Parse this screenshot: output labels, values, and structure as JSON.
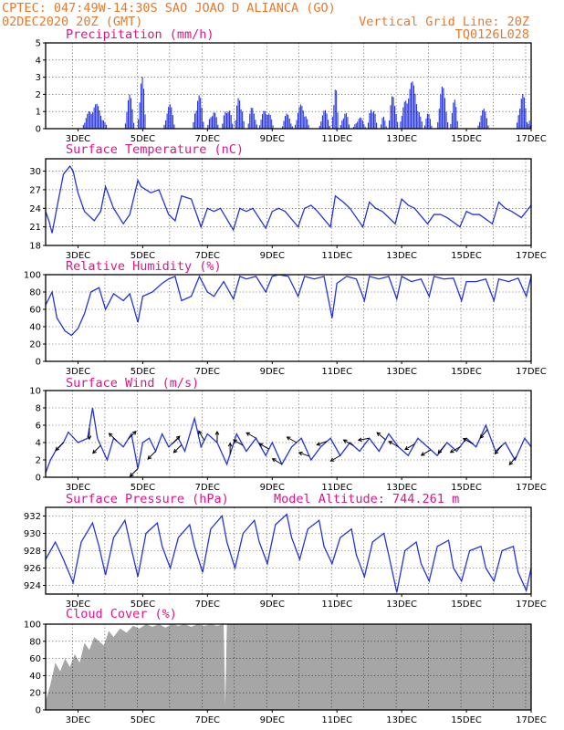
{
  "header": {
    "line1_left": "CPTEC:   047:49W-14:30S  SAO JOAO D ALIANCA (GO)",
    "line2_left": "02DEC2020 20Z (GMT)",
    "line2_right": "Vertical Grid Line: 20Z",
    "line3_right": "TQ0126L028"
  },
  "colors": {
    "header": "#e8792b",
    "panel_title": "#e0148c",
    "series": "#2434e0",
    "cloud": "#a6a6a6"
  },
  "chart_data": [
    {
      "id": "precip",
      "type": "bar",
      "title": "Precipitation (mm/h)",
      "ylim": [
        0,
        5
      ],
      "yticks": [
        0,
        1,
        2,
        3,
        4,
        5
      ],
      "x_domain_days": [
        2.0,
        17.0
      ],
      "xticks": [
        "3DEC",
        "5DEC",
        "7DEC",
        "9DEC",
        "11DEC",
        "13DEC",
        "15DEC",
        "17DEC"
      ],
      "events": [
        [
          3.15,
          3.9,
          1.5
        ],
        [
          4.45,
          4.75,
          2.0
        ],
        [
          4.85,
          5.1,
          3.3
        ],
        [
          5.65,
          6.0,
          1.5
        ],
        [
          6.55,
          6.9,
          2.2
        ],
        [
          7.0,
          7.35,
          1.2
        ],
        [
          7.45,
          7.8,
          1.5
        ],
        [
          7.85,
          8.15,
          2.2
        ],
        [
          8.25,
          8.55,
          1.4
        ],
        [
          8.6,
          9.05,
          1.3
        ],
        [
          9.3,
          9.65,
          0.9
        ],
        [
          9.7,
          10.15,
          1.5
        ],
        [
          10.45,
          10.8,
          1.1
        ],
        [
          10.85,
          11.05,
          3.1
        ],
        [
          11.1,
          11.4,
          1.1
        ],
        [
          11.5,
          11.9,
          0.7
        ],
        [
          11.95,
          12.25,
          1.6
        ],
        [
          12.35,
          12.55,
          0.8
        ],
        [
          12.6,
          12.9,
          2.2
        ],
        [
          12.95,
          13.65,
          2.8
        ],
        [
          13.7,
          13.95,
          0.9
        ],
        [
          14.1,
          14.45,
          2.5
        ],
        [
          14.5,
          14.75,
          1.8
        ],
        [
          15.35,
          15.7,
          1.2
        ],
        [
          16.55,
          16.9,
          2.2
        ],
        [
          16.9,
          17.0,
          0.6
        ]
      ]
    },
    {
      "id": "temp",
      "type": "line",
      "title": "Surface Temperature (nC)",
      "ylim": [
        18,
        32
      ],
      "yticks": [
        18,
        21,
        24,
        27,
        30
      ],
      "x_domain_days": [
        2.0,
        17.0
      ],
      "xticks": [
        "3DEC",
        "5DEC",
        "7DEC",
        "9DEC",
        "11DEC",
        "13DEC",
        "15DEC",
        "17DEC"
      ],
      "x": [
        2.0,
        2.1,
        2.2,
        2.4,
        2.55,
        2.75,
        2.85,
        3.0,
        3.2,
        3.5,
        3.7,
        3.85,
        4.1,
        4.4,
        4.6,
        4.85,
        4.95,
        5.25,
        5.5,
        5.8,
        6.0,
        6.2,
        6.5,
        6.8,
        7.0,
        7.2,
        7.4,
        7.8,
        8.0,
        8.2,
        8.4,
        8.8,
        9.0,
        9.2,
        9.4,
        9.8,
        10.0,
        10.2,
        10.4,
        10.8,
        10.95,
        11.2,
        11.4,
        11.8,
        12.0,
        12.2,
        12.4,
        12.8,
        13.0,
        13.2,
        13.4,
        13.8,
        14.0,
        14.2,
        14.4,
        14.8,
        15.0,
        15.2,
        15.4,
        15.8,
        16.0,
        16.2,
        16.4,
        16.7,
        17.0
      ],
      "y": [
        23.5,
        22.0,
        20.0,
        25.5,
        29.5,
        30.8,
        30.0,
        26.5,
        23.5,
        22.0,
        23.5,
        27.5,
        24.0,
        21.5,
        23.0,
        28.5,
        27.5,
        26.5,
        27.0,
        23.0,
        22.0,
        26.0,
        25.5,
        21.0,
        24.0,
        23.5,
        24.0,
        20.5,
        24.0,
        23.5,
        24.0,
        20.8,
        23.5,
        24.0,
        23.5,
        21.0,
        24.0,
        24.5,
        23.5,
        21.0,
        26.0,
        25.0,
        24.0,
        21.0,
        25.0,
        24.0,
        23.5,
        21.5,
        25.5,
        24.5,
        24.0,
        21.5,
        23.0,
        23.0,
        22.5,
        21.0,
        23.5,
        23.0,
        23.0,
        21.5,
        25.0,
        24.0,
        23.5,
        22.5,
        24.5
      ]
    },
    {
      "id": "rh",
      "type": "line",
      "title": "Relative Humidity (%)",
      "ylim": [
        0,
        100
      ],
      "yticks": [
        0,
        20,
        40,
        60,
        80,
        100
      ],
      "x_domain_days": [
        2.0,
        17.0
      ],
      "xticks": [
        "3DEC",
        "5DEC",
        "7DEC",
        "9DEC",
        "11DEC",
        "13DEC",
        "15DEC",
        "17DEC"
      ],
      "x": [
        2.0,
        2.2,
        2.35,
        2.6,
        2.8,
        3.0,
        3.2,
        3.4,
        3.65,
        3.85,
        4.1,
        4.4,
        4.6,
        4.85,
        5.0,
        5.3,
        5.6,
        5.8,
        6.0,
        6.2,
        6.5,
        6.75,
        7.0,
        7.2,
        7.5,
        7.8,
        8.0,
        8.2,
        8.5,
        8.8,
        9.0,
        9.2,
        9.5,
        9.8,
        10.0,
        10.3,
        10.6,
        10.85,
        11.0,
        11.3,
        11.6,
        11.85,
        12.0,
        12.3,
        12.6,
        12.85,
        13.0,
        13.3,
        13.6,
        13.85,
        14.0,
        14.3,
        14.6,
        14.85,
        15.0,
        15.3,
        15.6,
        15.85,
        16.0,
        16.3,
        16.6,
        16.85,
        17.0
      ],
      "y": [
        65,
        80,
        50,
        35,
        30,
        38,
        55,
        80,
        85,
        60,
        78,
        70,
        78,
        45,
        75,
        80,
        90,
        95,
        98,
        70,
        75,
        98,
        80,
        75,
        92,
        72,
        98,
        95,
        98,
        80,
        98,
        100,
        98,
        75,
        98,
        95,
        98,
        50,
        90,
        98,
        95,
        70,
        98,
        95,
        98,
        72,
        98,
        92,
        95,
        75,
        98,
        95,
        96,
        70,
        92,
        92,
        95,
        70,
        95,
        92,
        96,
        75,
        98
      ]
    },
    {
      "id": "wind",
      "type": "line",
      "title": "Surface Wind (m/s)",
      "ylim": [
        0,
        10
      ],
      "yticks": [
        0,
        2,
        4,
        6,
        8,
        10
      ],
      "x_domain_days": [
        2.0,
        17.0
      ],
      "xticks": [
        "3DEC",
        "5DEC",
        "7DEC",
        "9DEC",
        "11DEC",
        "13DEC",
        "15DEC",
        "17DEC"
      ],
      "x": [
        2.0,
        2.15,
        2.3,
        2.55,
        2.7,
        3.0,
        3.3,
        3.45,
        3.6,
        3.9,
        4.1,
        4.4,
        4.65,
        4.85,
        5.0,
        5.2,
        5.4,
        5.6,
        5.8,
        6.1,
        6.3,
        6.6,
        6.8,
        7.0,
        7.3,
        7.6,
        7.9,
        8.2,
        8.5,
        8.8,
        9.0,
        9.3,
        9.6,
        9.9,
        10.2,
        10.5,
        10.8,
        11.1,
        11.4,
        11.7,
        12.0,
        12.3,
        12.6,
        12.9,
        13.2,
        13.5,
        13.8,
        14.1,
        14.4,
        14.7,
        15.0,
        15.3,
        15.6,
        15.9,
        16.2,
        16.5,
        16.8,
        17.0
      ],
      "y": [
        0.5,
        2.0,
        3.0,
        4.0,
        5.2,
        4.0,
        4.5,
        8.0,
        4.5,
        2.0,
        4.5,
        3.5,
        5.0,
        1.0,
        4.0,
        4.5,
        3.0,
        5.0,
        3.5,
        4.5,
        3.0,
        6.8,
        3.5,
        5.0,
        4.0,
        1.5,
        5.0,
        3.0,
        4.5,
        2.5,
        4.0,
        1.5,
        3.5,
        4.5,
        2.0,
        3.5,
        4.5,
        2.5,
        4.0,
        3.0,
        4.5,
        3.0,
        5.0,
        3.5,
        2.5,
        4.5,
        3.5,
        2.5,
        4.0,
        3.0,
        4.5,
        3.5,
        6.0,
        3.0,
        4.0,
        2.0,
        4.5,
        3.5
      ],
      "vectors": [
        [
          2.55,
          225
        ],
        [
          3.35,
          180
        ],
        [
          3.7,
          225
        ],
        [
          4.2,
          315
        ],
        [
          4.55,
          45
        ],
        [
          4.85,
          225
        ],
        [
          5.4,
          225
        ],
        [
          5.9,
          45
        ],
        [
          6.2,
          225
        ],
        [
          6.9,
          330
        ],
        [
          7.3,
          0
        ],
        [
          7.7,
          0
        ],
        [
          8.1,
          300
        ],
        [
          8.5,
          300
        ],
        [
          8.9,
          300
        ],
        [
          9.3,
          300
        ],
        [
          9.75,
          300
        ],
        [
          10.15,
          290
        ],
        [
          10.7,
          250
        ],
        [
          11.1,
          240
        ],
        [
          11.5,
          300
        ],
        [
          12.0,
          260
        ],
        [
          12.5,
          310
        ],
        [
          12.9,
          300
        ],
        [
          13.4,
          240
        ],
        [
          13.9,
          240
        ],
        [
          14.35,
          220
        ],
        [
          14.8,
          240
        ],
        [
          15.2,
          300
        ],
        [
          15.65,
          220
        ],
        [
          16.1,
          220
        ],
        [
          16.55,
          220
        ]
      ]
    },
    {
      "id": "pres",
      "type": "line",
      "title": "Surface Pressure (hPa)",
      "annotation": "Model Altitude: 744.261 m",
      "ylim": [
        923,
        933
      ],
      "yticks": [
        924,
        926,
        928,
        930,
        932
      ],
      "x_domain_days": [
        2.0,
        17.0
      ],
      "xticks": [
        "3DEC",
        "5DEC",
        "7DEC",
        "9DEC",
        "11DEC",
        "13DEC",
        "15DEC",
        "17DEC"
      ],
      "x": [
        2.0,
        2.3,
        2.55,
        2.85,
        3.1,
        3.45,
        3.65,
        3.85,
        4.1,
        4.45,
        4.6,
        4.85,
        5.1,
        5.45,
        5.6,
        5.85,
        6.1,
        6.45,
        6.6,
        6.85,
        7.1,
        7.45,
        7.6,
        7.85,
        8.1,
        8.45,
        8.6,
        8.85,
        9.1,
        9.45,
        9.6,
        9.85,
        10.1,
        10.45,
        10.6,
        10.85,
        11.1,
        11.45,
        11.6,
        11.85,
        12.1,
        12.45,
        12.6,
        12.85,
        13.1,
        13.45,
        13.6,
        13.85,
        14.1,
        14.45,
        14.6,
        14.85,
        15.1,
        15.45,
        15.6,
        15.85,
        16.1,
        16.45,
        16.6,
        16.85,
        17.0
      ],
      "y": [
        927.0,
        929.0,
        927.0,
        924.3,
        929.0,
        931.2,
        928.5,
        925.2,
        929.5,
        931.5,
        929.0,
        925.0,
        930.0,
        931.2,
        928.5,
        926.0,
        929.5,
        931.0,
        928.5,
        925.5,
        930.5,
        932.0,
        929.0,
        926.0,
        930.0,
        931.5,
        929.0,
        926.5,
        931.0,
        932.2,
        929.5,
        927.0,
        930.5,
        931.5,
        928.5,
        926.5,
        929.5,
        930.5,
        927.5,
        925.0,
        929.0,
        930.0,
        927.5,
        923.2,
        928.0,
        929.0,
        926.5,
        924.5,
        928.5,
        929.2,
        926.0,
        924.5,
        928.0,
        928.5,
        926.0,
        924.5,
        928.0,
        928.5,
        925.5,
        923.4,
        926.0
      ]
    },
    {
      "id": "cloud",
      "type": "area",
      "title": "Cloud Cover (%)",
      "ylim": [
        0,
        100
      ],
      "yticks": [
        0,
        20,
        40,
        60,
        80,
        100
      ],
      "x_domain_days": [
        2.0,
        17.0
      ],
      "xticks": [
        "3DEC",
        "5DEC",
        "7DEC",
        "9DEC",
        "11DEC",
        "13DEC",
        "15DEC",
        "17DEC"
      ],
      "x": [
        2.0,
        2.15,
        2.3,
        2.45,
        2.6,
        2.75,
        2.9,
        3.05,
        3.2,
        3.35,
        3.5,
        3.65,
        3.8,
        3.95,
        4.1,
        4.3,
        4.5,
        4.7,
        4.9,
        5.1,
        5.3,
        5.5,
        5.7,
        5.9,
        6.1,
        6.3,
        6.5,
        6.7,
        6.9,
        7.1,
        7.3,
        7.5,
        7.55,
        7.6,
        7.7,
        8.0,
        17.0
      ],
      "y": [
        10,
        30,
        55,
        45,
        60,
        50,
        65,
        55,
        78,
        70,
        85,
        80,
        75,
        92,
        85,
        95,
        90,
        98,
        95,
        100,
        97,
        100,
        96,
        100,
        98,
        100,
        97,
        100,
        98,
        100,
        98,
        100,
        5,
        100,
        100,
        100,
        100
      ]
    }
  ]
}
